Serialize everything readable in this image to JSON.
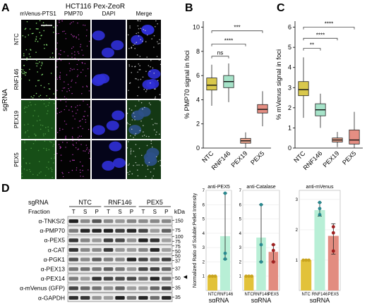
{
  "panel_letters": {
    "a": "A",
    "b": "B",
    "c": "C",
    "d": "D"
  },
  "panel_a": {
    "title": "HCT116 Pex-ZeoR",
    "columns": [
      "mVenus-PTS1",
      "PMP70",
      "DAPI",
      "Merge"
    ],
    "rows": [
      "NTC",
      "RNF146",
      "PEX19",
      "PEX5"
    ],
    "side_label": "sgRNA"
  },
  "panel_b": {
    "ylabel": "% PMP70 signal in foci",
    "xticks": [
      "NTC",
      "RNF146",
      "PEX19",
      "PEX5"
    ],
    "yticks": [
      "0",
      "2",
      "4",
      "6",
      "8",
      "10"
    ],
    "sig": [
      "ns",
      "****",
      "***"
    ],
    "colors": [
      "#d9c84c",
      "#a6e3c9",
      "#e9a58f",
      "#e58e83"
    ]
  },
  "panel_c": {
    "ylabel": "% mVenus signal in foci",
    "xticks": [
      "NTC",
      "RNF146",
      "PEX19",
      "PEX5"
    ],
    "yticks": [
      "0",
      "1",
      "2",
      "3",
      "4",
      "5",
      "6"
    ],
    "sig": [
      "**",
      "****",
      "****"
    ],
    "colors": [
      "#d9c84c",
      "#a6e3c9",
      "#e9a58f",
      "#e58e83"
    ]
  },
  "panel_d_blot": {
    "sgrna_label": "sgRNA",
    "groups": [
      "NTC",
      "RNF146",
      "PEX5"
    ],
    "fraction_label": "Fraction",
    "fractions": [
      "T",
      "S",
      "P",
      "T",
      "S",
      "P",
      "T",
      "S",
      "P"
    ],
    "kda_label": "kDa",
    "rows": [
      {
        "label": "α-TNKS/2",
        "markers": [
          "150"
        ]
      },
      {
        "label": "α-PMP70",
        "markers": [
          "75"
        ]
      },
      {
        "label": "α-PEX5",
        "markers": [
          "100",
          "75"
        ]
      },
      {
        "label": "α-CAT",
        "markers": [
          "75",
          "50"
        ]
      },
      {
        "label": "α-PGK1",
        "markers": [
          "50",
          "37"
        ]
      },
      {
        "label": "α-PEX13",
        "markers": [
          "37"
        ]
      },
      {
        "label": "α-PEX14",
        "markers": [
          "50"
        ]
      },
      {
        "label": "α-mVenus (GFP)",
        "markers": [
          "35"
        ]
      },
      {
        "label": "α-GAPDH",
        "markers": [
          "35"
        ]
      }
    ],
    "arrow": "◄"
  },
  "chart_data": [
    {
      "type": "box",
      "panel": "B",
      "ylabel": "% PMP70 signal in foci",
      "categories": [
        "NTC",
        "RNF146",
        "PEX19",
        "PEX5"
      ],
      "ylim": [
        0,
        10.5
      ],
      "boxes": [
        {
          "min": 3.5,
          "q1": 4.8,
          "median": 5.2,
          "q3": 5.8,
          "max": 6.9
        },
        {
          "min": 3.8,
          "q1": 5.0,
          "median": 5.5,
          "q3": 6.0,
          "max": 7.0
        },
        {
          "min": 0.0,
          "q1": 0.4,
          "median": 0.6,
          "q3": 0.8,
          "max": 1.3
        },
        {
          "min": 1.8,
          "q1": 2.9,
          "median": 3.2,
          "q3": 3.6,
          "max": 4.7
        }
      ]
    },
    {
      "type": "box",
      "panel": "C",
      "ylabel": "% mVenus signal in foci",
      "categories": [
        "NTC",
        "RNF146",
        "PEX19",
        "PEX5"
      ],
      "ylim": [
        0,
        6.3
      ],
      "boxes": [
        {
          "min": 1.5,
          "q1": 2.6,
          "median": 2.9,
          "q3": 3.3,
          "max": 4.5
        },
        {
          "min": 1.0,
          "q1": 1.6,
          "median": 1.9,
          "q3": 2.2,
          "max": 2.7
        },
        {
          "min": 0.05,
          "q1": 0.3,
          "median": 0.4,
          "q3": 0.5,
          "max": 0.8
        },
        {
          "min": 0.0,
          "q1": 0.2,
          "median": 0.4,
          "q3": 0.9,
          "max": 1.8
        }
      ]
    },
    {
      "type": "bar",
      "title": "anti-PEX5",
      "ylabel": "Normalized Ratio of Soluble:Pellet Intensity",
      "xlabel": "sgRNA",
      "categories": [
        "NTC",
        "RNF146"
      ],
      "values": [
        1.0,
        3.8
      ],
      "errors_low": [
        1.0,
        2.2
      ],
      "errors_high": [
        1.0,
        6.8
      ],
      "points": [
        [
          1.0,
          1.0,
          1.0
        ],
        [
          2.2,
          2.6,
          6.8
        ]
      ],
      "ylim": [
        0,
        7
      ],
      "colors": [
        "#e2c23a",
        "#b8efd6"
      ]
    },
    {
      "type": "bar",
      "title": "anti-Catalase",
      "xlabel": "sgRNA",
      "categories": [
        "NTC",
        "RNF146",
        "PEX5"
      ],
      "values": [
        1.0,
        3.7,
        2.7
      ],
      "errors_low": [
        1.0,
        2.0,
        2.0
      ],
      "errors_high": [
        1.0,
        6.0,
        3.2
      ],
      "points": [
        [
          1.0,
          1.0,
          1.0
        ],
        [
          2.0,
          3.2,
          6.0
        ],
        [
          2.0,
          2.8,
          3.2
        ]
      ],
      "ylim": [
        0,
        7
      ],
      "colors": [
        "#e2c23a",
        "#b8efd6",
        "#e28c80"
      ]
    },
    {
      "type": "bar",
      "title": "anti-mVenus",
      "xlabel": "sgRNA",
      "categories": [
        "NTC",
        "RNF146",
        "PEX5"
      ],
      "values": [
        1.0,
        2.65,
        1.8
      ],
      "errors_low": [
        1.0,
        2.45,
        1.2
      ],
      "errors_high": [
        1.0,
        2.9,
        2.2
      ],
      "points": [
        [
          1.0,
          1.0,
          1.0
        ],
        [
          2.5,
          2.7,
          2.9
        ],
        [
          1.3,
          1.9,
          2.1
        ]
      ],
      "ylim": [
        0,
        3.3
      ],
      "colors": [
        "#e2c23a",
        "#b8efd6",
        "#e28c80"
      ]
    }
  ]
}
